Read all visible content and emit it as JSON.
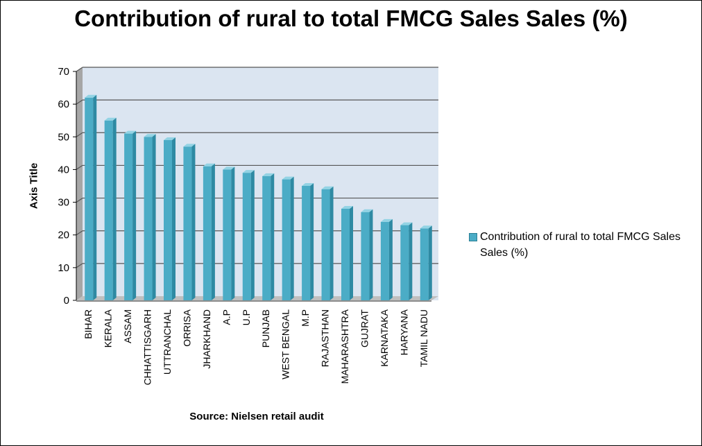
{
  "chart_data": {
    "type": "bar",
    "title": "Contribution of rural to total FMCG Sales Sales (%)",
    "ylabel": "Axis Title",
    "xlabel": "Source: Nielsen retail audit",
    "ylim": [
      0,
      70
    ],
    "yticks": [
      "0",
      "10",
      "20",
      "30",
      "40",
      "50",
      "60",
      "70"
    ],
    "grid": true,
    "legend_position": "right",
    "categories": [
      "BIHAR",
      "KERALA",
      "ASSAM",
      "CHHATTISGARH",
      "UTTRANCHAL",
      "ORRISA",
      "JHARKHAND",
      "A.P",
      "U.P",
      "PUNJAB",
      "WEST BENGAL",
      "M.P",
      "RAJASTHAN",
      "MAHARASHTRA",
      "GUJRAT",
      "KARNATAKA",
      "HARYANA",
      "TAMIL NADU"
    ],
    "series": [
      {
        "name": "Contribution of rural to total FMCG Sales Sales (%)",
        "values": [
          62,
          55,
          51,
          50,
          49,
          47,
          41,
          40,
          39,
          38,
          37,
          35,
          34,
          28,
          27,
          24,
          23,
          22
        ]
      }
    ],
    "colors": {
      "bar": "#4bacc6",
      "bar_dark": "#2e8aa3",
      "bar_top": "#93d3e4",
      "plot_bg": "#dbe5f1",
      "gridline": "#555555"
    }
  }
}
